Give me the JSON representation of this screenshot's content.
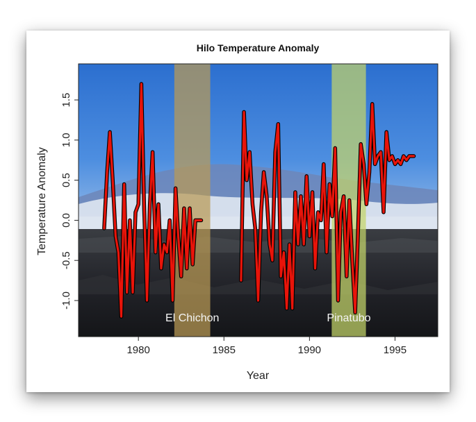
{
  "chart_data": {
    "type": "line",
    "title": "Hilo Temperature Anomaly",
    "xlabel": "Year",
    "ylabel": "Temperature Anomaly",
    "xlim": [
      1976.5,
      1997.5
    ],
    "ylim": [
      -1.45,
      1.95
    ],
    "x_ticks": [
      1980,
      1985,
      1990,
      1995
    ],
    "y_ticks": [
      -1.0,
      -0.5,
      0.0,
      0.5,
      1.0,
      1.5
    ],
    "y_tick_labels": [
      "-1.0",
      "-0.5",
      "0.0",
      "0.5",
      "1.0",
      "1.5"
    ],
    "grid": false,
    "line_color": "#e8140a",
    "shaded_periods": [
      {
        "label": "El Chichon",
        "start": 1982.1,
        "end": 1984.2,
        "color": "#ba9a55"
      },
      {
        "label": "Pinatubo",
        "start": 1991.3,
        "end": 1993.3,
        "color": "#c4d46a"
      }
    ],
    "segments": [
      {
        "x": [
          1978.0,
          1978.17,
          1978.33,
          1978.5,
          1978.67,
          1978.83,
          1979.0,
          1979.17,
          1979.33,
          1979.5,
          1979.67,
          1979.83,
          1980.0,
          1980.17,
          1980.33,
          1980.5,
          1980.67,
          1980.83,
          1981.0,
          1981.17,
          1981.33,
          1981.5,
          1981.67,
          1981.83,
          1982.0,
          1982.17,
          1982.33,
          1982.5,
          1982.67,
          1982.83,
          1983.0,
          1983.17,
          1983.33,
          1983.5,
          1983.67
        ],
        "y": [
          -0.1,
          0.6,
          1.1,
          0.5,
          -0.2,
          -0.4,
          -1.2,
          0.45,
          -0.9,
          0.0,
          -0.9,
          0.1,
          0.2,
          1.7,
          0.2,
          -1.0,
          0.2,
          0.85,
          -0.4,
          0.2,
          -0.6,
          -0.3,
          -0.4,
          0.0,
          -1.0,
          0.4,
          -0.2,
          -0.7,
          0.15,
          -0.6,
          0.15,
          -0.55,
          0.0,
          0.0,
          0.0
        ]
      },
      {
        "x": [
          1986.0,
          1986.17,
          1986.33,
          1986.5,
          1986.67,
          1986.83,
          1987.0,
          1987.17,
          1987.33,
          1987.5,
          1987.67,
          1987.83,
          1988.0,
          1988.17,
          1988.33,
          1988.5,
          1988.67,
          1988.83,
          1989.0,
          1989.17,
          1989.33,
          1989.5,
          1989.67,
          1989.83,
          1990.0,
          1990.17,
          1990.33,
          1990.5,
          1990.67,
          1990.83,
          1991.0,
          1991.17,
          1991.33,
          1991.5,
          1991.67,
          1991.83,
          1992.0,
          1992.17,
          1992.33,
          1992.5,
          1992.67,
          1992.83,
          1993.0,
          1993.17,
          1993.33,
          1993.5,
          1993.67,
          1993.83,
          1994.0,
          1994.17,
          1994.33,
          1994.5,
          1994.67,
          1994.83,
          1995.0,
          1995.17,
          1995.33,
          1995.5,
          1995.67,
          1995.83,
          1996.0,
          1996.1
        ],
        "y": [
          -0.75,
          1.35,
          0.5,
          0.85,
          0.2,
          -0.1,
          -1.0,
          0.1,
          0.6,
          0.3,
          -0.3,
          -0.5,
          0.85,
          1.2,
          -0.7,
          -0.4,
          -1.1,
          -0.3,
          -1.1,
          0.35,
          -0.3,
          0.3,
          -0.3,
          0.55,
          -0.2,
          0.35,
          -0.6,
          0.1,
          0.0,
          0.7,
          -0.4,
          0.45,
          0.05,
          0.9,
          -1.0,
          0.1,
          0.3,
          -0.7,
          0.25,
          -0.5,
          -1.15,
          -0.2,
          0.95,
          0.7,
          0.2,
          0.6,
          1.45,
          0.7,
          0.8,
          0.85,
          0.1,
          1.1,
          0.75,
          0.8,
          0.7,
          0.75,
          0.7,
          0.8,
          0.75,
          0.8,
          0.8,
          0.8
        ]
      }
    ]
  }
}
